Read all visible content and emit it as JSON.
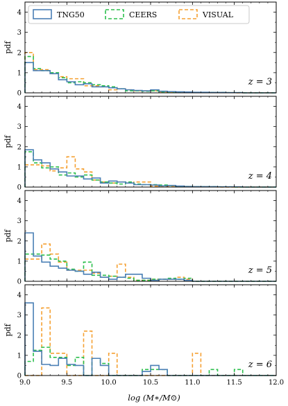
{
  "chart_data": {
    "type": "histogram-panels",
    "xlabel": "log (M∗/M⊙)",
    "xlim": [
      9.0,
      12.0
    ],
    "ylim": [
      0,
      4.5
    ],
    "ylabel": "pdf",
    "x_ticks": [
      "9.0",
      "9.5",
      "10.0",
      "10.5",
      "11.0",
      "11.5",
      "12.0"
    ],
    "y_ticks": [
      "0",
      "1",
      "2",
      "3",
      "4"
    ],
    "bin_edges": [
      9.0,
      9.1,
      9.2,
      9.3,
      9.4,
      9.5,
      9.6,
      9.7,
      9.8,
      9.9,
      10.0,
      10.1,
      10.2,
      10.3,
      10.4,
      10.5,
      10.6,
      10.7,
      10.8,
      10.9,
      11.0,
      11.1,
      11.2,
      11.3,
      11.4,
      11.5,
      11.6,
      11.7,
      11.8,
      11.9,
      12.0
    ],
    "legend": {
      "placement": "top",
      "entries": [
        {
          "name": "TNG50",
          "color": "#4a7fb5",
          "style": "solid"
        },
        {
          "name": "CEERS",
          "color": "#2bbf4c",
          "style": "dashed"
        },
        {
          "name": "VISUAL",
          "color": "#f5a031",
          "style": "dashed"
        }
      ]
    },
    "panels": [
      {
        "label": "z = 3",
        "series": [
          {
            "name": "TNG50",
            "values": [
              1.5,
              1.1,
              1.1,
              0.95,
              0.65,
              0.55,
              0.4,
              0.45,
              0.3,
              0.3,
              0.25,
              0.2,
              0.15,
              0.12,
              0.1,
              0.15,
              0.08,
              0.06,
              0.05,
              0.04,
              0.03,
              0.03,
              0.02,
              0.02,
              0.01,
              0.01,
              0.0,
              0.0,
              0.0,
              0.0
            ]
          },
          {
            "name": "CEERS",
            "values": [
              1.8,
              1.2,
              1.1,
              1.0,
              0.75,
              0.5,
              0.55,
              0.5,
              0.4,
              0.35,
              0.3,
              0.2,
              0.1,
              0.1,
              0.08,
              0.1,
              0.05,
              0.05,
              0.03,
              0.03,
              0.02,
              0.02,
              0.02,
              0.02,
              0.01,
              0.01,
              0.0,
              0.0,
              0.0,
              0.0
            ]
          },
          {
            "name": "VISUAL",
            "values": [
              2.0,
              1.15,
              1.15,
              0.95,
              0.8,
              0.7,
              0.7,
              0.35,
              0.35,
              0.3,
              0.15,
              0.2,
              0.15,
              0.1,
              0.1,
              0.1,
              0.05,
              0.03,
              0.03,
              0.03,
              0.02,
              0.02,
              0.02,
              0.02,
              0.01,
              0.0,
              0.0,
              0.0,
              0.0,
              0.0
            ]
          }
        ]
      },
      {
        "label": "z = 4",
        "series": [
          {
            "name": "TNG50",
            "values": [
              1.85,
              1.35,
              1.2,
              0.9,
              0.75,
              0.55,
              0.55,
              0.4,
              0.45,
              0.2,
              0.3,
              0.25,
              0.2,
              0.12,
              0.12,
              0.1,
              0.06,
              0.08,
              0.05,
              0.03,
              0.02,
              0.02,
              0.02,
              0.01,
              0.01,
              0.01,
              0.0,
              0.0,
              0.0,
              0.0
            ]
          },
          {
            "name": "CEERS",
            "values": [
              1.75,
              1.2,
              0.95,
              1.0,
              0.6,
              0.7,
              0.5,
              0.6,
              0.35,
              0.25,
              0.2,
              0.15,
              0.25,
              0.15,
              0.12,
              0.12,
              0.1,
              0.07,
              0.04,
              0.03,
              0.02,
              0.02,
              0.02,
              0.01,
              0.01,
              0.0,
              0.0,
              0.0,
              0.0,
              0.0
            ]
          },
          {
            "name": "VISUAL",
            "values": [
              1.1,
              1.1,
              1.05,
              0.8,
              0.95,
              1.5,
              0.9,
              0.75,
              0.35,
              0.25,
              0.2,
              0.25,
              0.2,
              0.25,
              0.25,
              0.05,
              0.05,
              0.05,
              0.03,
              0.03,
              0.02,
              0.02,
              0.01,
              0.0,
              0.0,
              0.0,
              0.0,
              0.0,
              0.0,
              0.0
            ]
          }
        ]
      },
      {
        "label": "z = 5",
        "series": [
          {
            "name": "TNG50",
            "values": [
              2.4,
              1.25,
              0.95,
              0.75,
              0.65,
              0.55,
              0.5,
              0.35,
              0.45,
              0.2,
              0.1,
              0.2,
              0.35,
              0.35,
              0.15,
              0.05,
              0.1,
              0.1,
              0.1,
              0.05,
              0.0,
              0.0,
              0.0,
              0.0,
              0.0,
              0.0,
              0.0,
              0.0,
              0.0,
              0.0
            ]
          },
          {
            "name": "CEERS",
            "values": [
              1.35,
              1.35,
              1.3,
              1.1,
              1.0,
              0.6,
              0.5,
              0.95,
              0.3,
              0.3,
              0.25,
              0.2,
              0.15,
              0.05,
              0.05,
              0.1,
              0.1,
              0.15,
              0.1,
              0.15,
              0.0,
              0.0,
              0.0,
              0.0,
              0.0,
              0.0,
              0.0,
              0.0,
              0.0,
              0.0
            ]
          },
          {
            "name": "VISUAL",
            "values": [
              1.1,
              1.1,
              1.85,
              1.35,
              0.95,
              0.55,
              0.55,
              0.55,
              0.4,
              0.2,
              0.25,
              0.85,
              0.2,
              0.05,
              0.05,
              0.1,
              0.1,
              0.1,
              0.2,
              0.1,
              0.0,
              0.0,
              0.0,
              0.0,
              0.0,
              0.0,
              0.0,
              0.0,
              0.0,
              0.0
            ]
          }
        ]
      },
      {
        "label": "z = 6",
        "series": [
          {
            "name": "TNG50",
            "values": [
              3.6,
              1.2,
              0.55,
              0.5,
              0.85,
              0.55,
              0.5,
              0.0,
              0.85,
              0.5,
              0.0,
              0.0,
              0.0,
              0.0,
              0.2,
              0.5,
              0.3,
              0.0,
              0.0,
              0.0,
              0.0,
              0.0,
              0.0,
              0.0,
              0.0,
              0.0,
              0.0,
              0.0,
              0.0,
              0.0
            ]
          },
          {
            "name": "CEERS",
            "values": [
              0.7,
              1.25,
              1.4,
              0.9,
              0.9,
              0.5,
              0.9,
              0.0,
              0.85,
              0.6,
              0.0,
              0.0,
              0.0,
              0.0,
              0.3,
              0.3,
              0.3,
              0.0,
              0.0,
              0.0,
              0.0,
              0.0,
              0.3,
              0.0,
              0.0,
              0.3,
              0.0,
              0.0,
              0.0,
              0.0
            ]
          },
          {
            "name": "VISUAL",
            "values": [
              0.0,
              0.0,
              3.35,
              1.1,
              1.1,
              0.0,
              0.0,
              2.2,
              0.0,
              0.0,
              1.1,
              0.0,
              0.0,
              0.0,
              0.0,
              0.0,
              0.0,
              0.0,
              0.0,
              0.0,
              1.1,
              0.0,
              0.0,
              0.0,
              0.0,
              0.0,
              0.0,
              0.0,
              0.0,
              0.0
            ]
          }
        ]
      }
    ]
  }
}
